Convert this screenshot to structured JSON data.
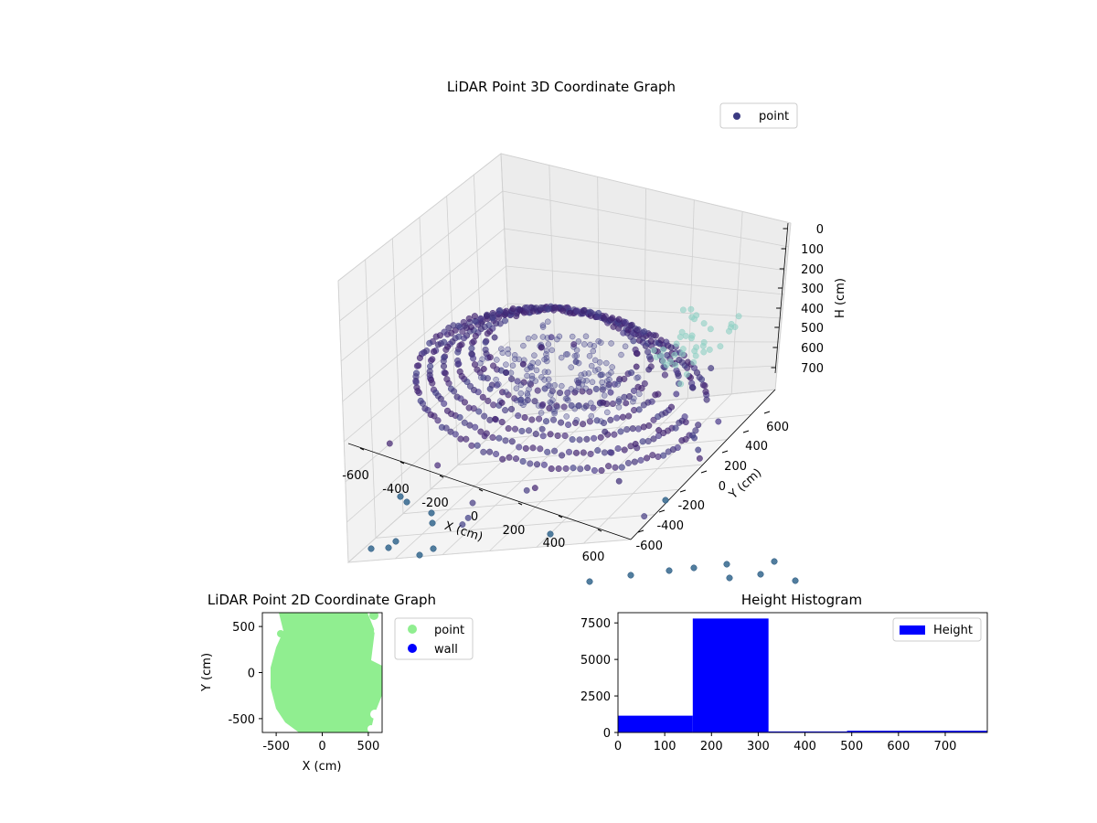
{
  "chart_data": [
    {
      "type": "scatter3d",
      "title": "LiDAR Point 3D Coordinate Graph",
      "xlabel": "X (cm)",
      "ylabel": "Y (cm)",
      "zlabel": "H (cm)",
      "x_ticks": [
        "-600",
        "-400",
        "-200",
        "0",
        "200",
        "400",
        "600"
      ],
      "y_ticks": [
        "-600",
        "-400",
        "-200",
        "0",
        "200",
        "400",
        "600"
      ],
      "z_ticks": [
        "0",
        "100",
        "200",
        "300",
        "400",
        "500",
        "600",
        "700"
      ],
      "xlim": [
        -650,
        650
      ],
      "ylim": [
        -650,
        650
      ],
      "zlim": [
        0,
        780
      ],
      "z_axis_inverted": true,
      "legend": [
        "point"
      ],
      "legend_position": "top-right",
      "colormap": "viridis-dark",
      "series": [
        {
          "name": "point",
          "description_points": "dense ring of points around radius ~550 cm at H ~200-300 cm, sparse outliers"
        }
      ]
    },
    {
      "type": "scatter",
      "title": "LiDAR Point 2D Coordinate Graph",
      "xlabel": "X (cm)",
      "ylabel": "Y (cm)",
      "x_ticks": [
        "-500",
        "0",
        "500"
      ],
      "y_ticks": [
        "500",
        "0",
        "-500"
      ],
      "xlim": [
        -650,
        650
      ],
      "ylim": [
        -650,
        650
      ],
      "legend": [
        {
          "name": "point",
          "color": "#90ee90"
        },
        {
          "name": "wall",
          "color": "#0000ff"
        }
      ],
      "legend_position": "outside-right"
    },
    {
      "type": "bar",
      "title": "Height Histogram",
      "x_ticks": [
        "0",
        "100",
        "200",
        "300",
        "400",
        "500",
        "600",
        "700"
      ],
      "y_ticks": [
        "0",
        "2500",
        "5000",
        "7500"
      ],
      "xlim": [
        0,
        790
      ],
      "ylim": [
        0,
        8200
      ],
      "bins": [
        {
          "from": 0,
          "to": 160,
          "value": 1150
        },
        {
          "from": 160,
          "to": 322,
          "value": 7800
        },
        {
          "from": 322,
          "to": 490,
          "value": 70
        },
        {
          "from": 490,
          "to": 790,
          "value": 120
        }
      ],
      "legend": [
        {
          "name": "Height",
          "color": "#0000ff"
        }
      ],
      "legend_position": "top-right"
    }
  ]
}
